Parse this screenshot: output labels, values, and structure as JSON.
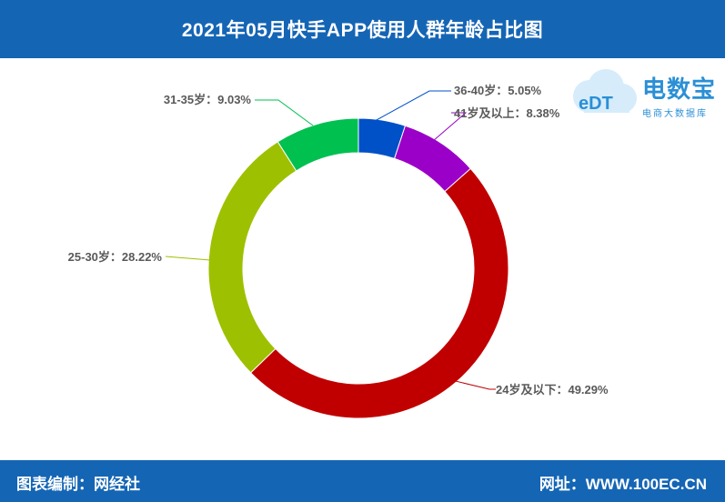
{
  "header": {
    "title": "2021年05月快手APP使用人群年龄占比图"
  },
  "footer": {
    "left": "图表编制：网经社",
    "right": "网址：WWW.100EC.CN"
  },
  "logo": {
    "mark": "eDT",
    "name": "电数宝",
    "subtitle": "电商大数据库"
  },
  "colors": {
    "header_bg": "#1565b5",
    "slice_24_below": "#c00000",
    "slice_25_30": "#9dc100",
    "slice_31_35": "#00c050",
    "slice_36_40": "#0050c8",
    "slice_41_above": "#9b00c8"
  },
  "chart_data": {
    "type": "pie",
    "donut": true,
    "categories": [
      "24岁及以下",
      "25-30岁",
      "31-35岁",
      "36-40岁",
      "41岁及以上"
    ],
    "values": [
      49.29,
      28.22,
      9.03,
      5.05,
      8.38
    ],
    "unit": "%",
    "labels": [
      "24岁及以下：49.29%",
      "25-30岁：28.22%",
      "31-35岁：9.03%",
      "36-40岁：5.05%",
      "41岁及以上：8.38%"
    ],
    "colors": [
      "#c00000",
      "#9dc100",
      "#00c050",
      "#0050c8",
      "#9b00c8"
    ]
  }
}
